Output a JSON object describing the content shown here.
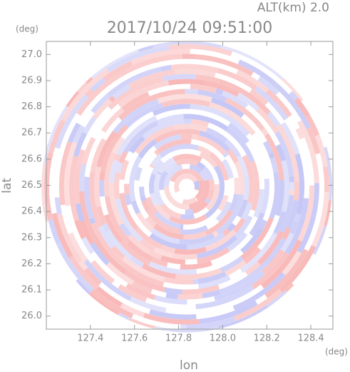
{
  "chart_data": {
    "type": "radar",
    "title": "2017/10/24 09:51:00",
    "subtitle": "ALT(km) 2.0",
    "x_label": "lon",
    "y_label": "lat",
    "x_unit": "(deg)",
    "y_unit": "(deg)",
    "xlim": [
      127.2,
      128.5
    ],
    "ylim": [
      25.95,
      27.05
    ],
    "xticks": [
      127.4,
      127.6,
      127.8,
      {
        "value": 128.0,
        "label": "128.0"
      },
      128.2,
      128.4
    ],
    "yticks": [
      {
        "value": 26.0,
        "label": "26.0"
      },
      26.1,
      26.2,
      26.3,
      26.4,
      26.5,
      26.6,
      26.7,
      26.8,
      26.9,
      {
        "value": 27.0,
        "label": "27.0"
      }
    ],
    "colors": [
      "#f9b8b8",
      "#c4c6f6"
    ]
  }
}
